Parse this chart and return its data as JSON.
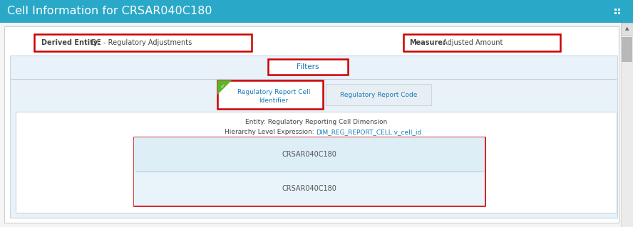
{
  "title": "Cell Information for CRSAR040C180",
  "header_bg": "#29a8c8",
  "header_text_color": "#ffffff",
  "body_bg": "#f5f5f5",
  "panel_bg": "#ffffff",
  "panel_border": "#d0d0d0",
  "red_border": "#cc0000",
  "derived_entity_label": "Derived Entity:",
  "derived_entity_value": " DE - Regulatory Adjustments",
  "measure_label": "Measure:",
  "measure_value": " Adjusted Amount",
  "filters_label": "Filters",
  "tab1_line1": "Regulatory Report Cell",
  "tab1_line2": "Identifier",
  "tab2_label": "Regulatory Report Code",
  "entity_line": "Entity: Regulatory Reporting Cell Dimension",
  "hierarchy_label": "Hierarchy Level Expression: ",
  "hierarchy_value": "DIM_REG_REPORT_CELL.v_cell_id",
  "row1": "CRSAR040C180",
  "row2": "CRSAR040C180",
  "label_color": "#444444",
  "link_color": "#1a7ab5",
  "tab_text_color": "#1a7ab5",
  "row_bg": "#ddeef7",
  "row_divider": "#b8cdd8",
  "icon_color": "#5ab52a",
  "inner_panel_bg": "#e8f2f8",
  "inner_panel_border": "#c8d8e4",
  "scrollbar_bg": "#e8e8e8",
  "scrollbar_thumb": "#b0b0b0",
  "scrollbar_arrow": "#888888"
}
